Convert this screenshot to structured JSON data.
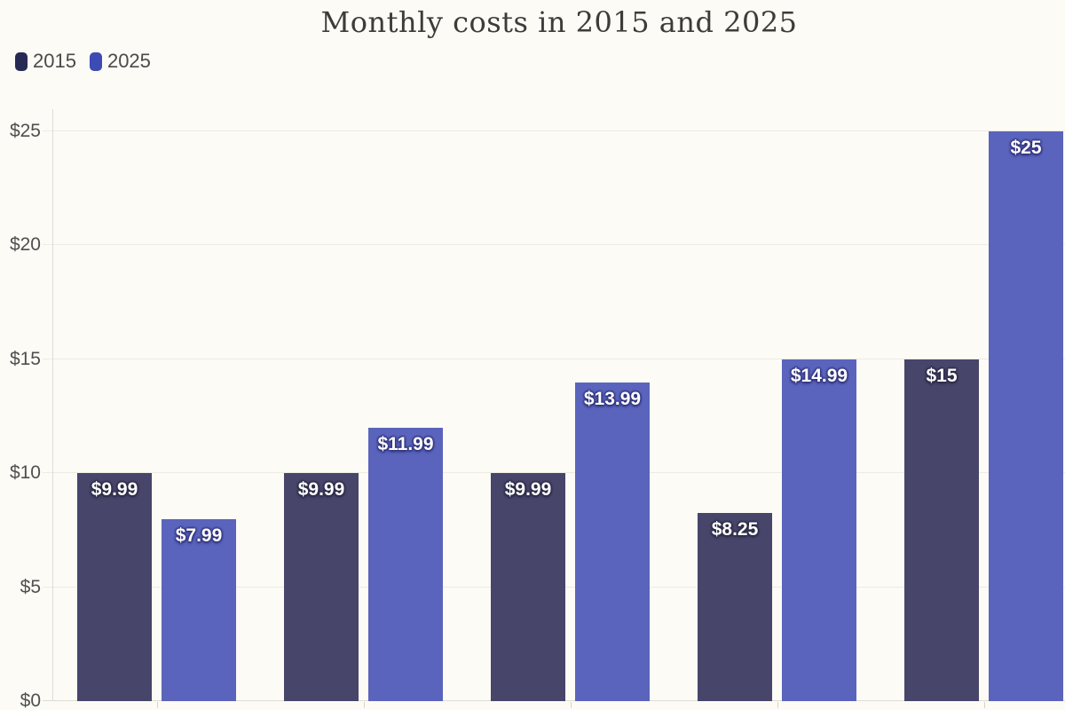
{
  "chart_data": {
    "type": "bar",
    "title": "Monthly costs in 2015 and 2025",
    "categories": [
      "",
      "",
      "",
      "",
      ""
    ],
    "categories_note": "category labels are cropped out of the visible screenshot",
    "series": [
      {
        "name": "2015",
        "legend_color": "#272a52",
        "bar_color": "#47456a",
        "label_shadow": "#2a2a45",
        "values": [
          9.99,
          9.99,
          9.99,
          8.25,
          15
        ],
        "value_labels": [
          "$9.99",
          "$9.99",
          "$9.99",
          "$8.25",
          "$15"
        ]
      },
      {
        "name": "2025",
        "legend_color": "#3d4bb5",
        "bar_color": "#5a64bc",
        "label_shadow": "#31337c",
        "values": [
          7.99,
          11.99,
          13.99,
          14.99,
          25
        ],
        "value_labels": [
          "$7.99",
          "$11.99",
          "$13.99",
          "$14.99",
          "$25"
        ]
      }
    ],
    "y_axis": {
      "min": 0,
      "max": 25,
      "ticks": [
        0,
        5,
        10,
        15,
        20,
        25
      ],
      "tick_labels": [
        "$0",
        "$5",
        "$10",
        "$15",
        "$20",
        "$25"
      ]
    },
    "legend_position": "top-left",
    "grid": "horizontal"
  },
  "colors": {
    "background": "#fcfbf5",
    "title_text": "#3d3c39",
    "axis_label_text": "#4f4f4f",
    "legend_text": "#4a4a4a",
    "gridline": "#edebe4",
    "axis_line": "#dedcd4",
    "tick": "#d6d4cc",
    "bar_label_text": "#ffffff"
  }
}
